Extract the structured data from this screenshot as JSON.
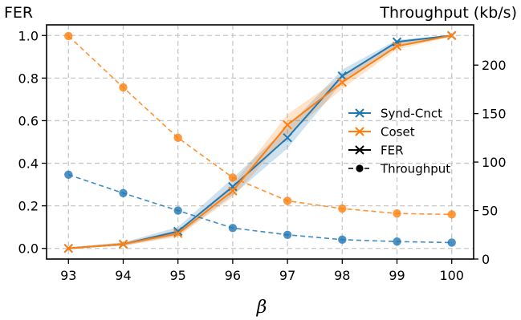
{
  "chart_data": {
    "type": "line",
    "left_axis_title": "FER",
    "right_axis_title": "Throughput (kb/s)",
    "xlabel": "β",
    "x": [
      93,
      94,
      95,
      96,
      97,
      98,
      99,
      100
    ],
    "xlim": [
      92.6,
      100.4
    ],
    "ylim_left": [
      -0.05,
      1.05
    ],
    "ylim_right": [
      0,
      241.5
    ],
    "yticks_left": [
      "0.0",
      "0.2",
      "0.4",
      "0.6",
      "0.8",
      "1.0"
    ],
    "yticks_right": [
      "0",
      "50",
      "100",
      "150",
      "200"
    ],
    "grid": true,
    "colors": {
      "synd": "#1f77b4",
      "coset": "#ff7f0e"
    },
    "series": [
      {
        "name": "Synd-Cnct",
        "metric": "FER",
        "axis": "left",
        "color": "#1f77b4",
        "marker": "x",
        "style": "solid",
        "values": [
          0.0,
          0.02,
          0.08,
          0.29,
          0.52,
          0.81,
          0.97,
          1.0
        ],
        "band_lower": [
          0.0,
          0.012,
          0.06,
          0.25,
          0.47,
          0.78,
          0.955,
          0.995
        ],
        "band_upper": [
          0.005,
          0.028,
          0.1,
          0.33,
          0.57,
          0.84,
          0.98,
          1.0
        ]
      },
      {
        "name": "Coset",
        "metric": "FER",
        "axis": "left",
        "color": "#ff7f0e",
        "marker": "x",
        "style": "solid",
        "values": [
          0.0,
          0.02,
          0.07,
          0.27,
          0.58,
          0.78,
          0.95,
          1.0
        ],
        "band_lower": [
          0.0,
          0.012,
          0.055,
          0.24,
          0.53,
          0.75,
          0.935,
          0.995
        ],
        "band_upper": [
          0.005,
          0.028,
          0.085,
          0.3,
          0.63,
          0.81,
          0.965,
          1.0
        ]
      },
      {
        "name": "Synd-Cnct",
        "metric": "Throughput",
        "axis": "right",
        "color": "#1f77b4",
        "marker": "o",
        "style": "dashed",
        "values": [
          87,
          68,
          50,
          32,
          25,
          20,
          18,
          17
        ]
      },
      {
        "name": "Coset",
        "metric": "Throughput",
        "axis": "right",
        "color": "#ff7f0e",
        "marker": "o",
        "style": "dashed",
        "values": [
          230,
          177,
          125,
          84,
          60,
          52,
          47,
          46
        ]
      }
    ],
    "legend": {
      "position": "center-right",
      "entries": [
        {
          "label": "Synd-Cnct",
          "kind": "line-x",
          "color": "#1f77b4"
        },
        {
          "label": "Coset",
          "kind": "line-x",
          "color": "#ff7f0e"
        },
        {
          "label": "FER",
          "kind": "line-x",
          "color": "#000000"
        },
        {
          "label": "Throughput",
          "kind": "dash-o",
          "color": "#000000"
        }
      ]
    }
  }
}
